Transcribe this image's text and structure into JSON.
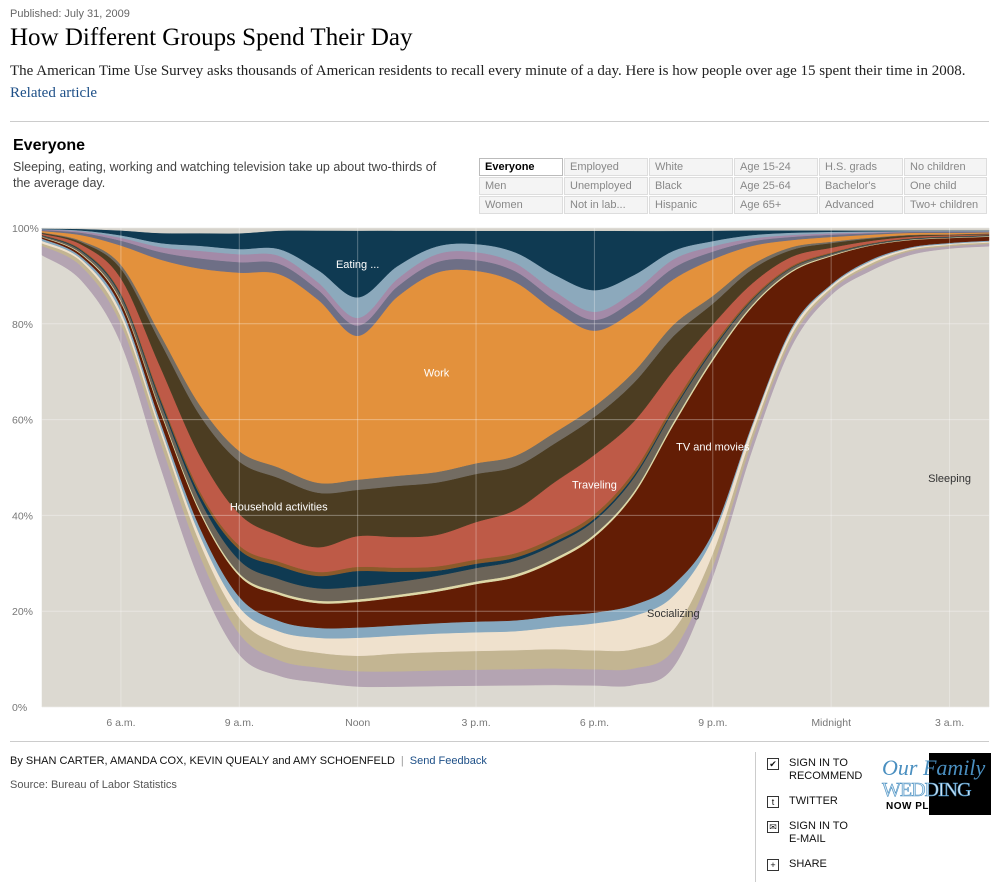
{
  "header": {
    "published": "Published: July 31, 2009",
    "title": "How Different Groups Spend Their Day",
    "description": "The American Time Use Survey asks thousands of American residents to recall every minute of a day. Here is how people over age 15 spent their time in 2008.",
    "related_link": "Related article"
  },
  "section": {
    "title": "Everyone",
    "description": "Sleeping, eating, working and watching television take up about two-thirds of the average day."
  },
  "filters": [
    [
      "Everyone",
      "Employed",
      "White",
      "Age 15-24",
      "H.S. grads",
      "No children"
    ],
    [
      "Men",
      "Unemployed",
      "Black",
      "Age 25-64",
      "Bachelor's",
      "One child"
    ],
    [
      "Women",
      "Not in lab...",
      "Hispanic",
      "Age 65+",
      "Advanced",
      "Two+ children"
    ]
  ],
  "selected_filter": "Everyone",
  "chart_data": {
    "type": "area",
    "stacked": true,
    "normalized": true,
    "xlabel": "",
    "ylabel": "",
    "ylim": [
      0,
      100
    ],
    "y_ticks": [
      "0%",
      "20%",
      "40%",
      "60%",
      "80%",
      "100%"
    ],
    "x_ticks": [
      "6 a.m.",
      "9 a.m.",
      "Noon",
      "3 p.m.",
      "6 p.m.",
      "9 p.m.",
      "Midnight",
      "3 a.m."
    ],
    "x_hours": [
      4,
      5,
      6,
      7,
      8,
      9,
      10,
      11,
      12,
      13,
      14,
      15,
      16,
      17,
      18,
      19,
      20,
      21,
      22,
      23,
      24,
      25,
      26,
      27,
      28
    ],
    "grid": true,
    "series": [
      {
        "name": "Sleeping",
        "color": "#dcd9d1",
        "values": [
          95,
          90,
          75,
          48,
          25,
          10,
          6,
          5,
          4,
          4,
          4,
          4,
          4,
          4,
          4,
          4,
          7,
          25,
          55,
          78,
          88,
          92,
          94,
          96,
          96
        ]
      },
      {
        "name": "",
        "color": "#b4a4b2",
        "values": [
          2,
          3,
          4,
          5,
          5,
          4,
          3,
          3,
          3,
          3,
          3,
          3,
          3,
          3,
          3,
          3,
          3,
          2,
          2,
          1.5,
          1,
          1,
          0.8,
          0.5,
          0.5
        ]
      },
      {
        "name": "",
        "color": "#c3b592",
        "values": [
          0.5,
          1,
          1.5,
          2,
          2.5,
          3,
          3,
          3,
          3,
          3.5,
          3.5,
          3.5,
          3.5,
          3.5,
          3.5,
          3.5,
          3.5,
          2.5,
          1.5,
          1,
          0.5,
          0.5,
          0.3,
          0.3,
          0.3
        ]
      },
      {
        "name": "Socializing",
        "color": "#efe1cd",
        "values": [
          0.5,
          0.5,
          1,
          1,
          1.5,
          2,
          2.5,
          3,
          3.5,
          3.5,
          3.5,
          3.5,
          3.5,
          4,
          5,
          6,
          6,
          3,
          1.5,
          1,
          0.5,
          0.5,
          0.3,
          0.2,
          0.2
        ]
      },
      {
        "name": "",
        "color": "#86a8bf",
        "values": [
          0.5,
          0.5,
          1,
          1,
          1.5,
          2,
          2,
          2,
          2,
          2,
          2,
          2,
          2,
          2,
          2,
          2,
          2,
          1,
          0.5,
          0.5,
          0.3,
          0.3,
          0.2,
          0.2,
          0.2
        ]
      },
      {
        "name": "TV and movies",
        "color": "#631d05",
        "values": [
          0.3,
          0.5,
          1,
          2,
          3,
          4,
          5,
          5,
          5,
          5.5,
          6,
          7,
          8,
          10,
          14,
          20,
          28,
          33,
          25,
          12,
          6,
          3,
          1.5,
          1,
          0.8
        ]
      },
      {
        "name": "",
        "color": "#ded8a8",
        "values": [
          0.1,
          0.2,
          0.3,
          0.4,
          0.5,
          0.5,
          0.5,
          0.5,
          0.5,
          0.5,
          0.5,
          0.5,
          0.5,
          0.5,
          0.5,
          0.5,
          0.5,
          0.5,
          0.4,
          0.3,
          0.2,
          0.1,
          0.1,
          0.1,
          0.1
        ]
      },
      {
        "name": "",
        "color": "#6c6458",
        "values": [
          0.2,
          0.5,
          1,
          1.5,
          2,
          2.5,
          2.5,
          2.5,
          2.5,
          2.5,
          2.5,
          2.5,
          2.5,
          2.5,
          2.5,
          2.5,
          2,
          1.5,
          1,
          0.6,
          0.3,
          0.2,
          0.1,
          0.1,
          0.1
        ]
      },
      {
        "name": "",
        "color": "#0f3a52",
        "values": [
          0.1,
          0.2,
          0.3,
          0.5,
          1,
          2,
          2.5,
          2.5,
          3,
          2,
          1,
          0.8,
          0.6,
          0.5,
          0.4,
          0.4,
          0.3,
          0.3,
          0.2,
          0.1,
          0.1,
          0.1,
          0.1,
          0.1,
          0.1
        ]
      },
      {
        "name": "",
        "color": "#8c5a2a",
        "values": [
          0.1,
          0.2,
          0.3,
          0.5,
          0.7,
          0.8,
          0.8,
          0.8,
          0.8,
          0.8,
          0.8,
          0.8,
          0.8,
          0.8,
          0.8,
          0.8,
          0.8,
          0.6,
          0.4,
          0.3,
          0.2,
          0.1,
          0.1,
          0.1,
          0.1
        ]
      },
      {
        "name": "Traveling",
        "color": "#be5a47",
        "values": [
          0.2,
          1,
          3,
          6,
          7,
          6,
          5,
          5,
          6,
          6,
          6,
          7,
          8,
          10,
          11,
          9,
          6,
          4,
          3,
          2,
          1,
          0.5,
          0.3,
          0.2,
          0.1
        ]
      },
      {
        "name": "Household activities",
        "color": "#4c3d22",
        "values": [
          0.2,
          0.5,
          2,
          5,
          8,
          10,
          11,
          11,
          9,
          10,
          10,
          9,
          8,
          7,
          7,
          7,
          6,
          4,
          3,
          1.5,
          1,
          0.5,
          0.3,
          0.1,
          0.1
        ]
      },
      {
        "name": "",
        "color": "#736c62",
        "values": [
          0.1,
          0.3,
          0.8,
          1.5,
          2,
          2,
          2,
          2,
          2,
          2,
          2,
          2,
          2,
          2,
          2,
          2,
          2,
          1.5,
          1,
          0.6,
          0.3,
          0.2,
          0.1,
          0.1,
          0.1
        ]
      },
      {
        "name": "Work",
        "color": "#e3913c",
        "values": [
          0.3,
          1.2,
          4,
          15,
          27,
          34,
          37,
          37,
          28,
          35,
          38,
          36,
          32,
          22,
          14,
          11,
          8,
          7,
          4,
          1.5,
          1,
          0.6,
          0.4,
          0.3,
          0.2
        ]
      },
      {
        "name": "",
        "color": "#6e6f86",
        "values": [
          0.2,
          0.5,
          1,
          1.5,
          2,
          2,
          2,
          2,
          2,
          2,
          2,
          2,
          2,
          2,
          2,
          2,
          2,
          1.5,
          1,
          0.7,
          0.5,
          0.3,
          0.2,
          0.2,
          0.1
        ]
      },
      {
        "name": "",
        "color": "#a38aa8",
        "values": [
          0.1,
          0.3,
          0.6,
          1,
          1.5,
          1.5,
          1.5,
          1.5,
          1.5,
          1.5,
          1.5,
          1.5,
          1.5,
          1.5,
          1.5,
          1.5,
          1.5,
          1,
          0.6,
          0.4,
          0.3,
          0.2,
          0.1,
          0.1,
          0.1
        ]
      },
      {
        "name": "",
        "color": "#8ca9bc",
        "values": [
          0.1,
          0.2,
          0.5,
          0.8,
          1,
          1,
          1.3,
          2.5,
          4,
          2.5,
          1.5,
          1.5,
          2,
          3,
          4,
          3,
          1.5,
          1,
          0.7,
          0.5,
          0.3,
          0.2,
          0.1,
          0.1,
          0.1
        ]
      },
      {
        "name": "Eating ...",
        "color": "#0f3a52",
        "values": [
          0.1,
          0.3,
          1,
          2,
          2.5,
          3,
          3.5,
          8,
          13,
          7,
          3,
          2.5,
          4,
          8,
          11,
          8,
          3.5,
          2,
          1,
          0.5,
          0.3,
          0.2,
          0.1,
          0.1,
          0.1
        ]
      },
      {
        "name": "",
        "color": "#d6d3cb",
        "values": [
          0.1,
          0.2,
          0.5,
          1,
          1,
          1,
          0.5,
          0.5,
          0.5,
          0.5,
          0.5,
          0.5,
          0.5,
          0.5,
          0.5,
          0.5,
          0.5,
          0.5,
          0.5,
          0.5,
          0.5,
          0.5,
          0.5,
          0.5,
          0.5
        ]
      }
    ]
  },
  "footer": {
    "byline": "By SHAN CARTER, AMANDA COX, KEVIN QUEALY and AMY SCHOENFELD",
    "feedback": "Send Feedback",
    "source": "Source: Bureau of Labor Statistics"
  },
  "tools": [
    {
      "icon": "check-icon",
      "glyph": "✔",
      "label_line1": "SIGN IN TO",
      "label_line2": "RECOMMEND"
    },
    {
      "icon": "twitter-icon",
      "glyph": "t",
      "label_line1": "TWITTER",
      "label_line2": ""
    },
    {
      "icon": "email-icon",
      "glyph": "✉",
      "label_line1": "SIGN IN TO",
      "label_line2": "E-MAIL"
    },
    {
      "icon": "plus-icon",
      "glyph": "+",
      "label_line1": "SHARE",
      "label_line2": ""
    }
  ],
  "ad": {
    "line1": "Our Family",
    "line2": "WEDDING",
    "line3": "NOW PLAYING"
  }
}
